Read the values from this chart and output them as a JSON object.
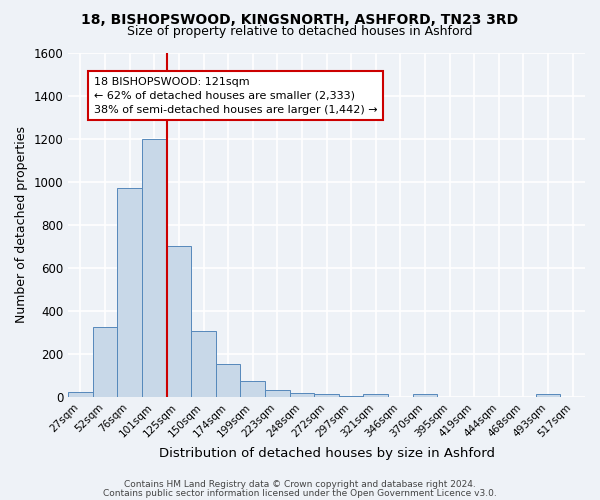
{
  "title": "18, BISHOPSWOOD, KINGSNORTH, ASHFORD, TN23 3RD",
  "subtitle": "Size of property relative to detached houses in Ashford",
  "xlabel": "Distribution of detached houses by size in Ashford",
  "ylabel": "Number of detached properties",
  "bar_labels": [
    "27sqm",
    "52sqm",
    "76sqm",
    "101sqm",
    "125sqm",
    "150sqm",
    "174sqm",
    "199sqm",
    "223sqm",
    "248sqm",
    "272sqm",
    "297sqm",
    "321sqm",
    "346sqm",
    "370sqm",
    "395sqm",
    "419sqm",
    "444sqm",
    "468sqm",
    "493sqm",
    "517sqm"
  ],
  "bar_values": [
    25,
    325,
    970,
    1200,
    700,
    305,
    155,
    75,
    30,
    18,
    12,
    5,
    12,
    0,
    12,
    0,
    0,
    0,
    0,
    12,
    0
  ],
  "bar_color": "#c8d8e8",
  "bar_edge_color": "#5588bb",
  "vline_color": "#cc0000",
  "annotation_title": "18 BISHOPSWOOD: 121sqm",
  "annotation_line1": "← 62% of detached houses are smaller (2,333)",
  "annotation_line2": "38% of semi-detached houses are larger (1,442) →",
  "annotation_box_color": "#ffffff",
  "annotation_box_edge": "#cc0000",
  "ylim": [
    0,
    1600
  ],
  "yticks": [
    0,
    200,
    400,
    600,
    800,
    1000,
    1200,
    1400,
    1600
  ],
  "bg_color": "#eef2f7",
  "grid_color": "#ffffff",
  "footer1": "Contains HM Land Registry data © Crown copyright and database right 2024.",
  "footer2": "Contains public sector information licensed under the Open Government Licence v3.0."
}
